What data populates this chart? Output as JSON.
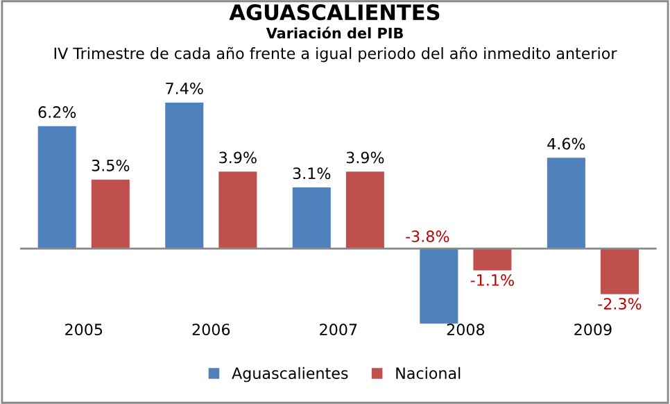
{
  "chart_data": {
    "type": "bar",
    "title": "AGUASCALIENTES",
    "subtitle": "Variación del PIB",
    "annotations": [
      "IV Trimestre de cada año frente a igual periodo del año inmedito anterior"
    ],
    "categories": [
      "2005",
      "2006",
      "2007",
      "2008",
      "2009"
    ],
    "series": [
      {
        "name": "Aguascalientes",
        "color": "#4f81bd",
        "values": [
          6.2,
          7.4,
          3.1,
          -3.8,
          4.6
        ],
        "value_labels": [
          "6.2%",
          "7.4%",
          "3.1%",
          "-3.8%",
          "4.6%"
        ]
      },
      {
        "name": "Nacional",
        "color": "#c0504d",
        "values": [
          3.5,
          3.9,
          3.9,
          -1.1,
          -2.3
        ],
        "value_labels": [
          "3.5%",
          "3.9%",
          "3.9%",
          "-1.1%",
          "-2.3%"
        ]
      }
    ],
    "legend": "bottom",
    "grid": false
  }
}
